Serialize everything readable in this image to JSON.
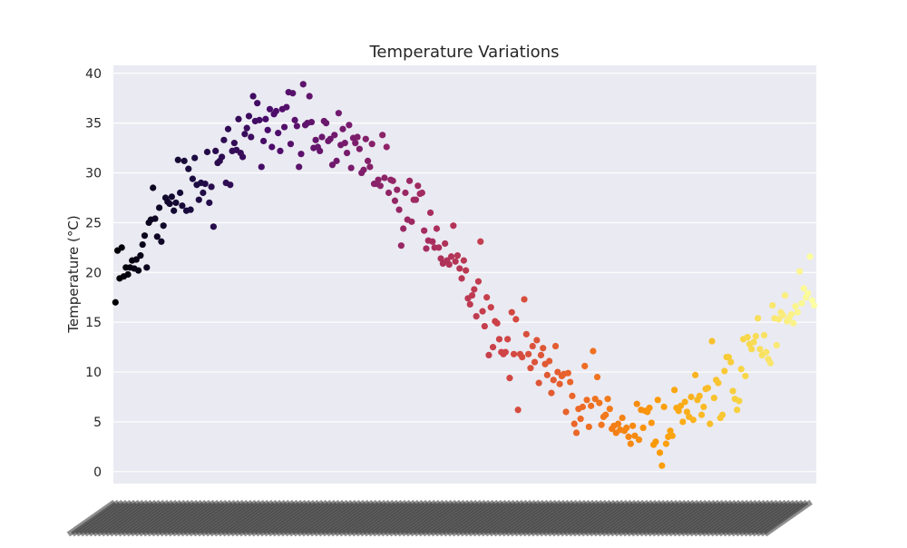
{
  "chart_data": {
    "type": "scatter",
    "title": "Temperature Variations",
    "xlabel": "",
    "ylabel": "Temperature (°C)",
    "ylim": [
      -1.2,
      40.8
    ],
    "yticks": [
      "0",
      "5",
      "10",
      "15",
      "20",
      "25",
      "30",
      "35",
      "40"
    ],
    "grid": true,
    "legend": "none",
    "background": "#eaeaf2",
    "grid_color": "#ffffff",
    "colormap": "inferno",
    "colormap_stops": [
      "#000004",
      "#1b0c41",
      "#4a0c6b",
      "#781c6d",
      "#a52c60",
      "#cf4446",
      "#ed6925",
      "#fb9b06",
      "#f7d13d",
      "#fcffa4"
    ],
    "x_tick_labels": "dense overlapping date labels (unreadable), one per point",
    "points": [
      [
        0,
        17.0
      ],
      [
        1,
        22.2
      ],
      [
        2,
        19.4
      ],
      [
        3,
        22.5
      ],
      [
        4,
        19.6
      ],
      [
        5,
        20.5
      ],
      [
        6,
        19.8
      ],
      [
        7,
        20.5
      ],
      [
        8,
        21.2
      ],
      [
        9,
        20.4
      ],
      [
        10,
        21.3
      ],
      [
        11,
        20.2
      ],
      [
        12,
        21.7
      ],
      [
        13,
        22.8
      ],
      [
        14,
        23.7
      ],
      [
        15,
        20.5
      ],
      [
        16,
        25.0
      ],
      [
        17,
        25.3
      ],
      [
        18,
        28.5
      ],
      [
        19,
        25.4
      ],
      [
        20,
        23.6
      ],
      [
        21,
        26.5
      ],
      [
        22,
        23.1
      ],
      [
        23,
        24.7
      ],
      [
        24,
        27.5
      ],
      [
        25,
        27.1
      ],
      [
        26,
        26.9
      ],
      [
        27,
        27.6
      ],
      [
        28,
        26.2
      ],
      [
        29,
        27.0
      ],
      [
        30,
        31.3
      ],
      [
        31,
        28.0
      ],
      [
        32,
        26.7
      ],
      [
        33,
        31.2
      ],
      [
        34,
        26.2
      ],
      [
        35,
        30.4
      ],
      [
        36,
        26.3
      ],
      [
        37,
        29.4
      ],
      [
        38,
        31.5
      ],
      [
        39,
        28.8
      ],
      [
        40,
        27.3
      ],
      [
        41,
        29.0
      ],
      [
        42,
        28.0
      ],
      [
        43,
        28.9
      ],
      [
        44,
        32.1
      ],
      [
        45,
        27.0
      ],
      [
        46,
        28.6
      ],
      [
        47,
        24.6
      ],
      [
        48,
        32.2
      ],
      [
        49,
        31.0
      ],
      [
        50,
        31.2
      ],
      [
        51,
        31.6
      ],
      [
        52,
        33.3
      ],
      [
        53,
        29.0
      ],
      [
        54,
        34.4
      ],
      [
        55,
        28.8
      ],
      [
        56,
        32.2
      ],
      [
        57,
        33.0
      ],
      [
        58,
        32.3
      ],
      [
        59,
        35.4
      ],
      [
        60,
        32.0
      ],
      [
        61,
        31.6
      ],
      [
        62,
        33.9
      ],
      [
        63,
        34.5
      ],
      [
        64,
        35.7
      ],
      [
        65,
        33.6
      ],
      [
        66,
        37.7
      ],
      [
        67,
        35.2
      ],
      [
        68,
        37.0
      ],
      [
        69,
        35.3
      ],
      [
        70,
        30.6
      ],
      [
        71,
        33.2
      ],
      [
        72,
        35.4
      ],
      [
        73,
        34.3
      ],
      [
        74,
        36.4
      ],
      [
        75,
        32.6
      ],
      [
        76,
        35.9
      ],
      [
        77,
        36.2
      ],
      [
        78,
        34.0
      ],
      [
        79,
        32.2
      ],
      [
        80,
        36.4
      ],
      [
        81,
        34.6
      ],
      [
        82,
        36.6
      ],
      [
        83,
        38.1
      ],
      [
        84,
        32.9
      ],
      [
        85,
        38.0
      ],
      [
        86,
        35.3
      ],
      [
        87,
        34.7
      ],
      [
        88,
        30.6
      ],
      [
        89,
        31.9
      ],
      [
        90,
        38.9
      ],
      [
        91,
        34.8
      ],
      [
        92,
        35.0
      ],
      [
        93,
        37.7
      ],
      [
        94,
        35.1
      ],
      [
        95,
        32.5
      ],
      [
        96,
        33.3
      ],
      [
        97,
        32.6
      ],
      [
        98,
        32.2
      ],
      [
        99,
        33.6
      ],
      [
        100,
        35.2
      ],
      [
        101,
        35.0
      ],
      [
        102,
        33.2
      ],
      [
        103,
        33.4
      ],
      [
        104,
        30.8
      ],
      [
        105,
        33.8
      ],
      [
        106,
        31.2
      ],
      [
        107,
        36.0
      ],
      [
        108,
        32.8
      ],
      [
        109,
        34.4
      ],
      [
        110,
        33.0
      ],
      [
        111,
        32.0
      ],
      [
        112,
        34.8
      ],
      [
        113,
        30.5
      ],
      [
        114,
        33.5
      ],
      [
        115,
        33.0
      ],
      [
        116,
        33.6
      ],
      [
        117,
        32.4
      ],
      [
        118,
        30.0
      ],
      [
        119,
        30.3
      ],
      [
        120,
        33.4
      ],
      [
        121,
        31.2
      ],
      [
        122,
        30.6
      ],
      [
        123,
        32.9
      ],
      [
        124,
        28.9
      ],
      [
        125,
        28.9
      ],
      [
        126,
        29.3
      ],
      [
        127,
        28.7
      ],
      [
        128,
        33.8
      ],
      [
        129,
        29.5
      ],
      [
        130,
        32.6
      ],
      [
        131,
        28.0
      ],
      [
        132,
        29.3
      ],
      [
        133,
        29.2
      ],
      [
        134,
        27.2
      ],
      [
        135,
        28.3
      ],
      [
        136,
        26.3
      ],
      [
        137,
        22.7
      ],
      [
        138,
        24.4
      ],
      [
        139,
        28.0
      ],
      [
        140,
        25.3
      ],
      [
        141,
        29.2
      ],
      [
        142,
        25.1
      ],
      [
        143,
        27.3
      ],
      [
        144,
        27.3
      ],
      [
        145,
        28.7
      ],
      [
        146,
        27.9
      ],
      [
        147,
        28.0
      ],
      [
        148,
        24.2
      ],
      [
        149,
        22.4
      ],
      [
        150,
        23.2
      ],
      [
        151,
        26.0
      ],
      [
        152,
        23.1
      ],
      [
        153,
        22.5
      ],
      [
        154,
        24.4
      ],
      [
        155,
        22.5
      ],
      [
        156,
        21.4
      ],
      [
        157,
        20.9
      ],
      [
        158,
        22.9
      ],
      [
        159,
        21.2
      ],
      [
        160,
        20.8
      ],
      [
        161,
        21.6
      ],
      [
        162,
        24.7
      ],
      [
        163,
        21.1
      ],
      [
        164,
        21.7
      ],
      [
        165,
        20.4
      ],
      [
        166,
        19.4
      ],
      [
        167,
        21.2
      ],
      [
        168,
        20.2
      ],
      [
        169,
        17.4
      ],
      [
        170,
        16.8
      ],
      [
        171,
        17.7
      ],
      [
        172,
        18.3
      ],
      [
        173,
        15.6
      ],
      [
        174,
        19.1
      ],
      [
        175,
        23.1
      ],
      [
        176,
        16.1
      ],
      [
        177,
        14.6
      ],
      [
        178,
        17.5
      ],
      [
        179,
        11.7
      ],
      [
        180,
        16.5
      ],
      [
        181,
        12.5
      ],
      [
        182,
        15.1
      ],
      [
        183,
        14.9
      ],
      [
        184,
        13.3
      ],
      [
        185,
        12.0
      ],
      [
        186,
        11.8
      ],
      [
        187,
        12.0
      ],
      [
        188,
        13.3
      ],
      [
        189,
        9.4
      ],
      [
        190,
        16.0
      ],
      [
        191,
        11.8
      ],
      [
        192,
        15.3
      ],
      [
        193,
        6.2
      ],
      [
        194,
        11.8
      ],
      [
        195,
        11.5
      ],
      [
        196,
        17.3
      ],
      [
        197,
        13.8
      ],
      [
        198,
        11.8
      ],
      [
        199,
        10.4
      ],
      [
        200,
        12.6
      ],
      [
        201,
        11.0
      ],
      [
        202,
        13.2
      ],
      [
        203,
        8.9
      ],
      [
        204,
        11.7
      ],
      [
        205,
        12.4
      ],
      [
        206,
        10.8
      ],
      [
        207,
        9.7
      ],
      [
        208,
        11.1
      ],
      [
        209,
        7.9
      ],
      [
        210,
        9.2
      ],
      [
        211,
        12.6
      ],
      [
        212,
        10.0
      ],
      [
        213,
        8.8
      ],
      [
        214,
        9.6
      ],
      [
        215,
        9.8
      ],
      [
        216,
        6.0
      ],
      [
        217,
        9.9
      ],
      [
        218,
        9.0
      ],
      [
        219,
        7.6
      ],
      [
        220,
        4.8
      ],
      [
        221,
        3.9
      ],
      [
        222,
        6.3
      ],
      [
        223,
        5.3
      ],
      [
        224,
        6.5
      ],
      [
        225,
        10.6
      ],
      [
        226,
        7.2
      ],
      [
        227,
        4.5
      ],
      [
        228,
        6.6
      ],
      [
        229,
        12.1
      ],
      [
        230,
        7.3
      ],
      [
        231,
        9.5
      ],
      [
        232,
        6.9
      ],
      [
        233,
        4.7
      ],
      [
        234,
        5.5
      ],
      [
        235,
        5.7
      ],
      [
        236,
        7.3
      ],
      [
        237,
        6.3
      ],
      [
        238,
        4.3
      ],
      [
        239,
        4.6
      ],
      [
        240,
        3.9
      ],
      [
        241,
        4.8
      ],
      [
        242,
        4.2
      ],
      [
        243,
        5.4
      ],
      [
        244,
        4.1
      ],
      [
        245,
        4.4
      ],
      [
        246,
        3.5
      ],
      [
        247,
        2.8
      ],
      [
        248,
        4.6
      ],
      [
        249,
        3.6
      ],
      [
        250,
        6.8
      ],
      [
        251,
        3.2
      ],
      [
        252,
        6.2
      ],
      [
        253,
        4.4
      ],
      [
        254,
        6.1
      ],
      [
        255,
        6.0
      ],
      [
        256,
        6.4
      ],
      [
        257,
        4.9
      ],
      [
        258,
        2.7
      ],
      [
        259,
        3.0
      ],
      [
        260,
        7.2
      ],
      [
        261,
        1.9
      ],
      [
        262,
        0.6
      ],
      [
        263,
        6.5
      ],
      [
        264,
        2.8
      ],
      [
        265,
        3.5
      ],
      [
        266,
        4.1
      ],
      [
        267,
        3.6
      ],
      [
        268,
        8.2
      ],
      [
        269,
        6.4
      ],
      [
        270,
        6.1
      ],
      [
        271,
        6.6
      ],
      [
        272,
        5.0
      ],
      [
        273,
        7.0
      ],
      [
        274,
        6.0
      ],
      [
        275,
        5.5
      ],
      [
        276,
        7.5
      ],
      [
        277,
        5.2
      ],
      [
        278,
        9.7
      ],
      [
        279,
        7.2
      ],
      [
        280,
        7.6
      ],
      [
        281,
        5.7
      ],
      [
        282,
        6.5
      ],
      [
        283,
        8.3
      ],
      [
        284,
        8.4
      ],
      [
        285,
        4.8
      ],
      [
        286,
        13.1
      ],
      [
        287,
        7.4
      ],
      [
        288,
        9.2
      ],
      [
        289,
        8.9
      ],
      [
        290,
        5.4
      ],
      [
        291,
        5.7
      ],
      [
        292,
        10.1
      ],
      [
        293,
        11.5
      ],
      [
        294,
        11.5
      ],
      [
        295,
        11.0
      ],
      [
        296,
        8.1
      ],
      [
        297,
        7.3
      ],
      [
        298,
        6.2
      ],
      [
        299,
        7.1
      ],
      [
        300,
        10.3
      ],
      [
        301,
        13.3
      ],
      [
        302,
        9.6
      ],
      [
        303,
        13.5
      ],
      [
        304,
        12.8
      ],
      [
        305,
        12.3
      ],
      [
        306,
        13.0
      ],
      [
        307,
        13.6
      ],
      [
        308,
        15.4
      ],
      [
        309,
        12.3
      ],
      [
        310,
        11.7
      ],
      [
        311,
        13.7
      ],
      [
        312,
        12.0
      ],
      [
        313,
        11.3
      ],
      [
        314,
        10.9
      ],
      [
        315,
        16.7
      ],
      [
        316,
        15.4
      ],
      [
        317,
        12.7
      ],
      [
        318,
        15.3
      ],
      [
        319,
        16.0
      ],
      [
        320,
        15.7
      ],
      [
        321,
        17.7
      ],
      [
        322,
        15.1
      ],
      [
        323,
        15.4
      ],
      [
        324,
        15.8
      ],
      [
        325,
        14.9
      ],
      [
        326,
        16.6
      ],
      [
        327,
        16.0
      ],
      [
        328,
        20.1
      ],
      [
        329,
        16.9
      ],
      [
        330,
        18.4
      ],
      [
        331,
        17.5
      ],
      [
        332,
        17.9
      ],
      [
        333,
        21.6
      ],
      [
        334,
        17.2
      ],
      [
        335,
        16.7
      ]
    ]
  }
}
